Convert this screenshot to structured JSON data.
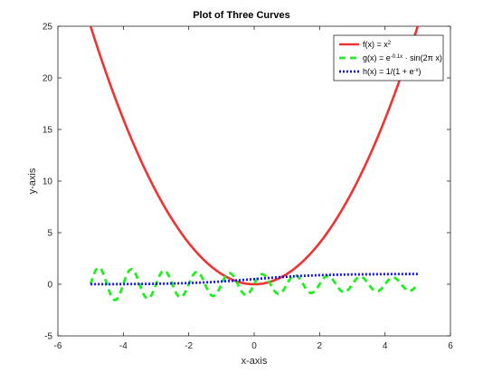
{
  "chart_data": {
    "type": "line",
    "title": "Plot of Three Curves",
    "xlabel": "x-axis",
    "ylabel": "y-axis",
    "xlim": [
      -6,
      6
    ],
    "ylim": [
      -5,
      25
    ],
    "xticks": [
      -6,
      -4,
      -2,
      0,
      2,
      4,
      6
    ],
    "yticks": [
      -5,
      0,
      5,
      10,
      15,
      20,
      25
    ],
    "grid": false,
    "legend_position": "top-right",
    "x": [
      -5,
      -4.5,
      -4,
      -3.5,
      -3,
      -2.5,
      -2,
      -1.5,
      -1,
      -0.5,
      0,
      0.5,
      1,
      1.5,
      2,
      2.5,
      3,
      3.5,
      4,
      4.5,
      5
    ],
    "series": [
      {
        "name": "f(x) = x²",
        "legend_label": {
          "base": "f(x) = x",
          "sup": "2",
          "tail": ""
        },
        "color": "#f03232",
        "style": "solid",
        "values": [
          25,
          20.25,
          16,
          12.25,
          9,
          6.25,
          4,
          2.25,
          1,
          0.25,
          0,
          0.25,
          1,
          2.25,
          4,
          6.25,
          9,
          12.25,
          16,
          20.25,
          25
        ]
      },
      {
        "name": "g(x) = e^(-0.1x) · sin(2πx)",
        "legend_label": {
          "base": "g(x) = e",
          "sup": "-0.1x",
          "tail": " · sin(2π x)"
        },
        "color": "#1ef01e",
        "style": "dashed",
        "values": [
          0,
          1.57,
          1.49,
          1.42,
          1.35,
          1.28,
          1.22,
          1.16,
          1.11,
          1.05,
          0,
          0.95,
          0.9,
          0.86,
          0.82,
          0.78,
          0.74,
          0.7,
          0.67,
          0.64,
          0
        ]
      },
      {
        "name": "h(x) = 1/(1 + e^(-x))",
        "legend_label": {
          "base": "h(x) = 1/(1 + e",
          "sup": "-x",
          "tail": ")"
        },
        "color": "#1414e6",
        "style": "dotted",
        "values": [
          0.007,
          0.011,
          0.018,
          0.029,
          0.047,
          0.076,
          0.119,
          0.182,
          0.269,
          0.378,
          0.5,
          0.622,
          0.731,
          0.818,
          0.881,
          0.924,
          0.953,
          0.971,
          0.982,
          0.989,
          0.993
        ]
      }
    ]
  }
}
